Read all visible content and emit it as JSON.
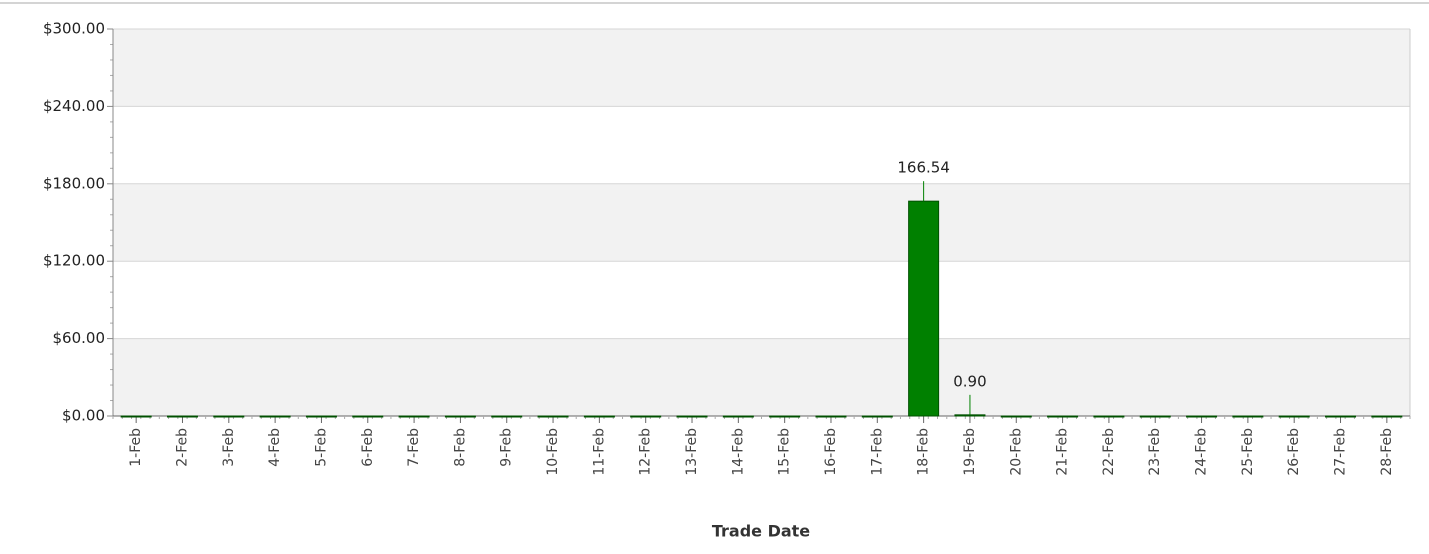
{
  "chart_data": {
    "type": "bar",
    "x_label": "Trade Date",
    "categories": [
      "1-Feb",
      "2-Feb",
      "3-Feb",
      "4-Feb",
      "5-Feb",
      "6-Feb",
      "7-Feb",
      "8-Feb",
      "9-Feb",
      "10-Feb",
      "11-Feb",
      "12-Feb",
      "13-Feb",
      "14-Feb",
      "15-Feb",
      "16-Feb",
      "17-Feb",
      "18-Feb",
      "19-Feb",
      "20-Feb",
      "21-Feb",
      "22-Feb",
      "23-Feb",
      "24-Feb",
      "25-Feb",
      "26-Feb",
      "27-Feb",
      "28-Feb"
    ],
    "values": [
      0,
      0,
      0,
      0,
      0,
      0,
      0,
      0,
      0,
      0,
      0,
      0,
      0,
      0,
      0,
      0,
      0,
      166.54,
      0.9,
      0,
      0,
      0,
      0,
      0,
      0,
      0,
      0,
      0
    ],
    "value_labels": [
      null,
      null,
      null,
      null,
      null,
      null,
      null,
      null,
      null,
      null,
      null,
      null,
      null,
      null,
      null,
      null,
      null,
      "166.54",
      "0.90",
      null,
      null,
      null,
      null,
      null,
      null,
      null,
      null,
      null
    ],
    "color": "#008000",
    "ylim": [
      0,
      300
    ],
    "yticks": [
      {
        "value": 0,
        "label": "$0.00"
      },
      {
        "value": 60,
        "label": "$60.00"
      },
      {
        "value": 120,
        "label": "$120.00"
      },
      {
        "value": 180,
        "label": "$180.00"
      },
      {
        "value": 240,
        "label": "$240.00"
      },
      {
        "value": 300,
        "label": "$300.00"
      }
    ],
    "grid": true
  }
}
